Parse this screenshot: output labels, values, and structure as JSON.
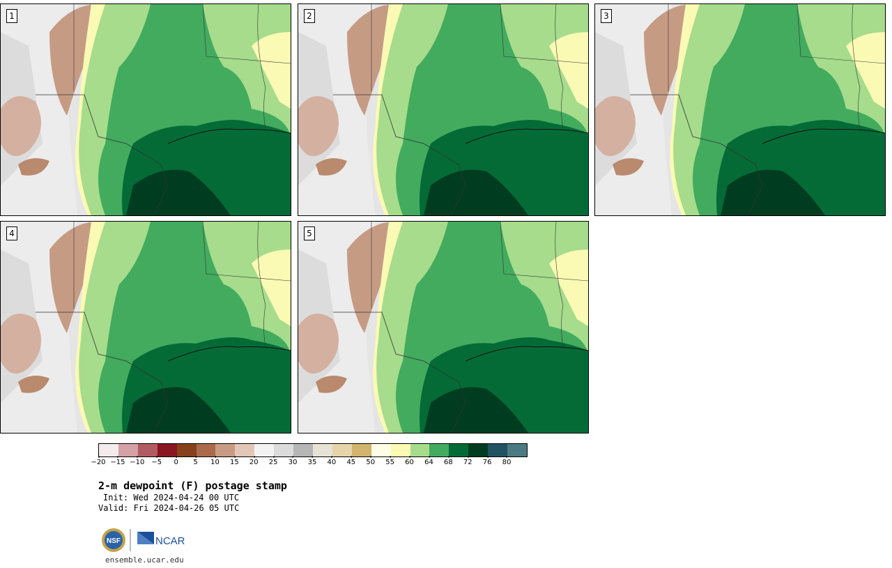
{
  "panels": [
    {
      "label": "1"
    },
    {
      "label": "2"
    },
    {
      "label": "3"
    },
    {
      "label": "4"
    },
    {
      "label": "5"
    }
  ],
  "legend": {
    "colors": [
      "#f4ecec",
      "#d4a1a6",
      "#b15c62",
      "#8b1521",
      "#86401c",
      "#a96b4b",
      "#c89b84",
      "#e2c6b6",
      "#f3f3f3",
      "#dcdcdc",
      "#b6b6b6",
      "#e6e2d6",
      "#e6d4aa",
      "#d2b46e",
      "#fffde4",
      "#fafab4",
      "#a6dc8c",
      "#42ab5e",
      "#046b37",
      "#003d20",
      "#225363",
      "#4b7a82"
    ],
    "ticks": [
      "−20",
      "−15",
      "−10",
      "−5",
      "0",
      "5",
      "10",
      "15",
      "20",
      "25",
      "30",
      "35",
      "40",
      "45",
      "50",
      "55",
      "60",
      "64",
      "68",
      "72",
      "76",
      "80"
    ]
  },
  "title": "2-m dewpoint (F) postage stamp",
  "init": "Init: Wed 2024-04-24 00 UTC",
  "valid": "Valid: Fri 2024-04-26 05 UTC",
  "logos": {
    "nsf": "NSF",
    "ncar": "NCAR"
  },
  "url": "ensemble.ucar.edu"
}
